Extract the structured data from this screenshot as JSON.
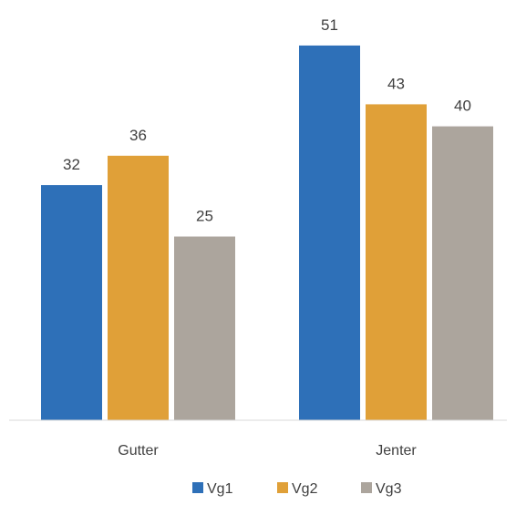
{
  "chart_data": {
    "type": "bar",
    "title": "",
    "xlabel": "",
    "ylabel": "",
    "categories": [
      "Gutter",
      "Jenter"
    ],
    "series": [
      {
        "name": "Vg1",
        "values": [
          32,
          51
        ],
        "color": "#2E70B8"
      },
      {
        "name": "Vg2",
        "values": [
          36,
          43
        ],
        "color": "#E0A038"
      },
      {
        "name": "Vg3",
        "values": [
          25,
          40
        ],
        "color": "#ACA59D"
      }
    ],
    "ylim": [
      0,
      55
    ],
    "grid": false,
    "y_axis_visible": false,
    "data_labels": true,
    "legend_position": "bottom"
  }
}
